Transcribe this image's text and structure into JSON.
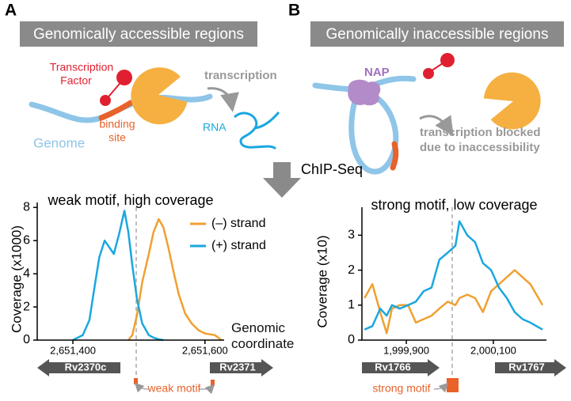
{
  "panel_labels": [
    "A",
    "B"
  ],
  "panel_a": {
    "banner": "Genomically accessible regions",
    "tf_label": [
      "Transcription",
      "Factor"
    ],
    "binding_label": [
      "binding",
      "site"
    ],
    "genome_label": "Genome",
    "rna_label": "RNA",
    "transcription_label": "transcription"
  },
  "panel_b": {
    "banner": "Genomically inaccessible regions",
    "nap_label": "NAP",
    "blocked_label": [
      "transcription blocked",
      "due to inaccessibility"
    ]
  },
  "step_label": "ChIP-Seq",
  "chart_data": [
    {
      "type": "line",
      "title": "weak motif, high coverage",
      "y_label": "Coverage (x1000)",
      "x_label": "Genomic coordinate",
      "x": [
        2651400,
        2651415,
        2651425,
        2651432,
        2651440,
        2651448,
        2651455,
        2651462,
        2651470,
        2651478,
        2651484,
        2651490,
        2651497,
        2651505,
        2651515,
        2651522,
        2651530,
        2651537,
        2651545,
        2651552,
        2651560,
        2651570,
        2651580,
        2651590,
        2651600,
        2651615,
        2651625
      ],
      "series": [
        {
          "name": "(–) strand",
          "color": "#f0a030",
          "values": [
            null,
            null,
            null,
            null,
            null,
            null,
            null,
            null,
            null,
            null,
            0,
            0.3,
            1.5,
            3.5,
            5.2,
            6.5,
            7.3,
            6.8,
            5.5,
            4.2,
            2.8,
            1.6,
            1.0,
            0.6,
            0.4,
            0.3,
            0
          ]
        },
        {
          "name": "(+) strand",
          "color": "#1aa7e0",
          "values": [
            0,
            0.3,
            1.2,
            3,
            5,
            6,
            5.6,
            5.2,
            6.4,
            7.8,
            6.5,
            4.5,
            2.5,
            1.0,
            0.3,
            0.15,
            0.05,
            0,
            null,
            null,
            null,
            null,
            null,
            null,
            null,
            null,
            null
          ]
        }
      ],
      "xlim": [
        2651346,
        2651629
      ],
      "xticks": [
        {
          "value": 2651400,
          "label": "2,651,400"
        },
        {
          "value": 2651600,
          "label": "2,651,600"
        }
      ],
      "ylim": [
        0,
        8.3
      ],
      "yticks": [
        0,
        2,
        4,
        6,
        8
      ],
      "genes": [
        "Rv2370c",
        "Rv2371"
      ],
      "motif_label": "weak motif"
    },
    {
      "type": "line",
      "title": "strong motif, low coverage",
      "y_label": "Coverage (x10)",
      "x": [
        1999804,
        1999822,
        1999840,
        1999855,
        1999867,
        1999885,
        1999904,
        1999922,
        1999940,
        1999958,
        1999976,
        1999995,
        2000013,
        2000022,
        2000040,
        2000058,
        2000076,
        2000095,
        2000113,
        2000131,
        2000149,
        2000167,
        2000185,
        2000213
      ],
      "series": [
        {
          "color": "#f0a030",
          "values": [
            1.2,
            1.6,
            0.8,
            0.2,
            0.9,
            1.0,
            1.0,
            0.5,
            0.6,
            0.7,
            0.9,
            1.1,
            1.0,
            1.2,
            1.3,
            1.2,
            0.8,
            1.4,
            1.6,
            1.8,
            2.0,
            1.8,
            1.6,
            1.0
          ]
        },
        {
          "color": "#1aa7e0",
          "values": [
            0.3,
            0.4,
            0.9,
            0.7,
            1.0,
            0.9,
            1.0,
            1.1,
            1.4,
            1.5,
            2.3,
            2.5,
            2.7,
            3.4,
            3.0,
            2.8,
            2.2,
            2.0,
            1.5,
            1.2,
            0.8,
            0.6,
            0.5,
            0.3
          ]
        }
      ],
      "xlim": [
        1999798,
        2000222
      ],
      "xticks": [
        {
          "value": 1999900,
          "label": "1,999,900"
        },
        {
          "value": 2000100,
          "label": "2,000,100"
        }
      ],
      "ylim": [
        0,
        3.8
      ],
      "yticks": [
        0,
        1,
        2,
        3
      ],
      "genes": [
        "Rv1766",
        "Rv1767"
      ],
      "motif_label": "strong motif"
    }
  ]
}
